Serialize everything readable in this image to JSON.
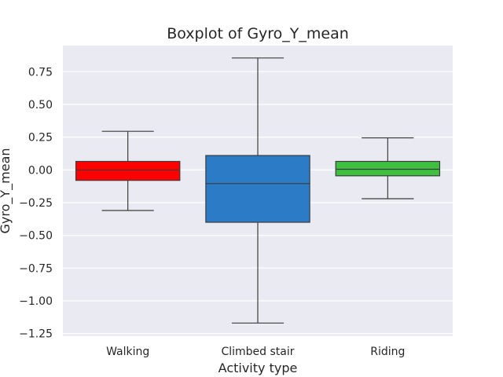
{
  "chart_data": {
    "type": "box",
    "title": "Boxplot of Gyro_Y_mean",
    "xlabel": "Activity type",
    "ylabel": "Gyro_Y_mean",
    "ylim": [
      -1.27,
      0.95
    ],
    "yticks": [
      0.75,
      0.5,
      0.25,
      0.0,
      -0.25,
      -0.5,
      -0.75,
      -1.0,
      -1.25
    ],
    "ytick_labels": [
      "0.75",
      "0.50",
      "0.25",
      "0.00",
      "−0.25",
      "−0.50",
      "−0.75",
      "−1.00",
      "−1.25"
    ],
    "grid": true,
    "categories": [
      "Walking",
      "Climbed stair",
      "Riding"
    ],
    "boxes": [
      {
        "category": "Walking",
        "whisker_low": -0.31,
        "q1": -0.08,
        "median": 0.0,
        "q3": 0.065,
        "whisker_high": 0.295,
        "color": "#ff0000"
      },
      {
        "category": "Climbed stair",
        "whisker_low": -1.17,
        "q1": -0.4,
        "median": -0.105,
        "q3": 0.11,
        "whisker_high": 0.855,
        "color": "#2b7bc7"
      },
      {
        "category": "Riding",
        "whisker_low": -0.22,
        "q1": -0.045,
        "median": 0.005,
        "q3": 0.065,
        "whisker_high": 0.245,
        "color": "#3fbf3f"
      }
    ]
  }
}
